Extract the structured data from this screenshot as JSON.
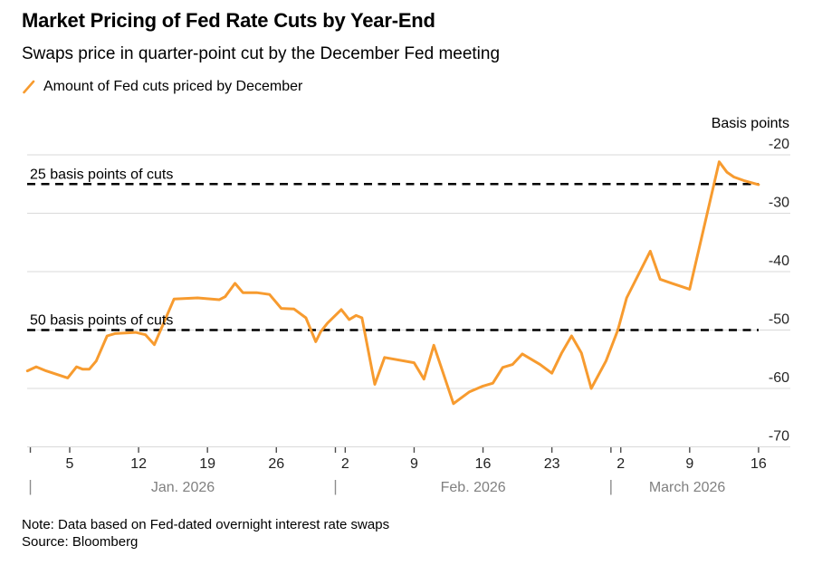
{
  "header": {
    "title": "Market Pricing of Fed Rate Cuts by Year-End",
    "subtitle": "Swaps price in quarter-point cut by the December Fed meeting"
  },
  "legend": {
    "marker": "orange-slash-icon",
    "series_label": "Amount of Fed cuts priced by December"
  },
  "footer": {
    "note": "Note: Data based on Fed-dated overnight interest rate swaps",
    "source": "Source: Bloomberg"
  },
  "colors": {
    "line": "#F79B2F",
    "grid": "#D9D9D9",
    "reference": "#000000",
    "y_label": "#262626",
    "day_label": "#1F1F1F",
    "tick": "#4D4D4D",
    "month_label": "#808080",
    "month_divider": "#8C8C8C"
  },
  "chart_data": {
    "type": "line",
    "title": "Market Pricing of Fed Rate Cuts by Year-End",
    "subtitle": "Swaps price in quarter-point cut by the December Fed meeting",
    "xlabel": "",
    "ylabel": "Basis points",
    "ylim": [
      -70,
      -20
    ],
    "grid": "horizontal",
    "legend_position": "top-left",
    "x_unit": "day serial of 2026 (Jan 1 = 1, Feb 1 = 32, Mar 1 = 60)",
    "y_axis": {
      "unit_label": "Basis points",
      "ticks": [
        -20,
        -30,
        -40,
        -50,
        -60,
        -70
      ]
    },
    "x_axis": {
      "day_ticks": [
        {
          "s": 5,
          "label": "5"
        },
        {
          "s": 12,
          "label": "12"
        },
        {
          "s": 19,
          "label": "19"
        },
        {
          "s": 26,
          "label": "26"
        },
        {
          "s": 33,
          "label": "2"
        },
        {
          "s": 40,
          "label": "9"
        },
        {
          "s": 47,
          "label": "16"
        },
        {
          "s": 54,
          "label": "23"
        },
        {
          "s": 61,
          "label": "2"
        },
        {
          "s": 68,
          "label": "9"
        },
        {
          "s": 75,
          "label": "16"
        }
      ],
      "minor_tick_days": [
        1,
        32,
        60
      ],
      "months": [
        {
          "label": "Jan. 2026",
          "s_start": 1,
          "s_end": 32
        },
        {
          "label": "Feb. 2026",
          "s_start": 32,
          "s_end": 60
        },
        {
          "label": "March 2026",
          "s_start": 60,
          "s_end": 75.5
        }
      ]
    },
    "reference_lines": [
      {
        "value": -25,
        "label": "25 basis points of cuts"
      },
      {
        "value": -50,
        "label": "50 basis points of cuts"
      }
    ],
    "series": [
      {
        "name": "Amount of Fed cuts priced by December",
        "points": [
          [
            0.7,
            -57.0
          ],
          [
            1.6,
            -56.3
          ],
          [
            2.6,
            -57.0
          ],
          [
            4.8,
            -58.2
          ],
          [
            5.7,
            -56.3
          ],
          [
            6.3,
            -56.7
          ],
          [
            7.0,
            -56.7
          ],
          [
            7.7,
            -55.3
          ],
          [
            8.8,
            -51.0
          ],
          [
            9.6,
            -50.6
          ],
          [
            11.7,
            -50.4
          ],
          [
            12.7,
            -50.8
          ],
          [
            13.6,
            -52.5
          ],
          [
            15.6,
            -44.7
          ],
          [
            18.0,
            -44.5
          ],
          [
            20.2,
            -44.8
          ],
          [
            20.8,
            -44.3
          ],
          [
            21.8,
            -42.0
          ],
          [
            22.6,
            -43.6
          ],
          [
            24.0,
            -43.6
          ],
          [
            25.3,
            -43.9
          ],
          [
            26.5,
            -46.3
          ],
          [
            27.8,
            -46.4
          ],
          [
            29.0,
            -47.9
          ],
          [
            30.0,
            -52.0
          ],
          [
            30.5,
            -50.3
          ],
          [
            31.2,
            -48.8
          ],
          [
            32.6,
            -46.5
          ],
          [
            33.4,
            -48.2
          ],
          [
            34.1,
            -47.5
          ],
          [
            34.7,
            -47.9
          ],
          [
            36.0,
            -59.3
          ],
          [
            37.0,
            -54.7
          ],
          [
            40.0,
            -55.6
          ],
          [
            41.0,
            -58.4
          ],
          [
            42.0,
            -52.6
          ],
          [
            44.0,
            -62.6
          ],
          [
            45.6,
            -60.6
          ],
          [
            47.0,
            -59.6
          ],
          [
            48.0,
            -59.1
          ],
          [
            49.0,
            -56.4
          ],
          [
            50.0,
            -55.9
          ],
          [
            51.0,
            -54.1
          ],
          [
            52.8,
            -55.9
          ],
          [
            54.0,
            -57.4
          ],
          [
            55.0,
            -53.9
          ],
          [
            56.0,
            -51.0
          ],
          [
            57.0,
            -53.9
          ],
          [
            58.0,
            -60.0
          ],
          [
            59.5,
            -55.3
          ],
          [
            60.7,
            -50.0
          ],
          [
            61.6,
            -44.5
          ],
          [
            64.0,
            -36.5
          ],
          [
            65.0,
            -41.3
          ],
          [
            66.2,
            -42.0
          ],
          [
            68.0,
            -43.0
          ],
          [
            71.0,
            -21.2
          ],
          [
            71.8,
            -23.0
          ],
          [
            72.5,
            -23.8
          ],
          [
            73.5,
            -24.4
          ],
          [
            75.0,
            -25.1
          ]
        ]
      }
    ]
  }
}
